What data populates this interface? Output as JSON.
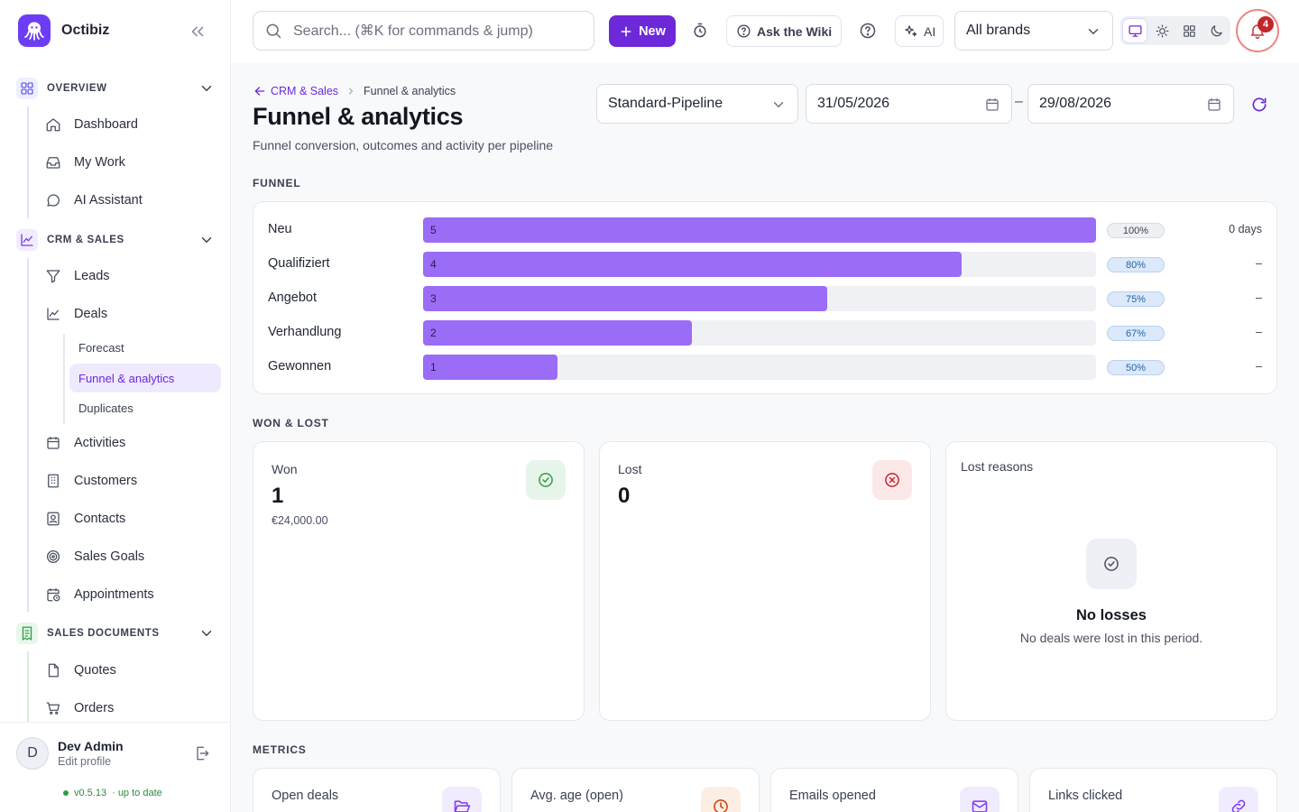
{
  "app": {
    "name": "Octibiz"
  },
  "sidebar": {
    "sections": [
      {
        "label": "OVERVIEW",
        "items": [
          "Dashboard",
          "My Work",
          "AI Assistant"
        ]
      },
      {
        "label": "CRM & SALES",
        "items": [
          "Leads",
          "Deals",
          "Activities",
          "Customers",
          "Contacts",
          "Sales Goals",
          "Appointments"
        ],
        "sub_items": [
          "Forecast",
          "Funnel & analytics",
          "Duplicates"
        ]
      },
      {
        "label": "SALES DOCUMENTS",
        "items": [
          "Quotes",
          "Orders"
        ]
      }
    ],
    "active_item": "Funnel & analytics"
  },
  "profile": {
    "initial": "D",
    "name": "Dev Admin",
    "link": "Edit profile",
    "version": "v0.5.13",
    "version_status": "· up to date"
  },
  "topbar": {
    "search_placeholder": "Search... (⌘K for commands & jump)",
    "new_label": "New",
    "wiki_label": "Ask the Wiki",
    "ai_label": "AI",
    "brand_select": "All brands",
    "notification_count": "4"
  },
  "page": {
    "breadcrumb_parent": "CRM & Sales",
    "breadcrumb_current": "Funnel & analytics",
    "title": "Funnel & analytics",
    "subtitle": "Funnel conversion, outcomes and activity per pipeline",
    "pipeline": "Standard-Pipeline",
    "date_from": "31/05/2026",
    "date_to": "29/08/2026",
    "date_separator": "–"
  },
  "funnel": {
    "heading": "FUNNEL",
    "stages": [
      {
        "name": "Neu",
        "count": 5,
        "fraction": 1.0,
        "pct": "100%",
        "days": "0 days"
      },
      {
        "name": "Qualifiziert",
        "count": 4,
        "fraction": 0.8,
        "pct": "80%",
        "days": "–"
      },
      {
        "name": "Angebot",
        "count": 3,
        "fraction": 0.6,
        "pct": "75%",
        "days": "–"
      },
      {
        "name": "Verhandlung",
        "count": 2,
        "fraction": 0.4,
        "pct": "67%",
        "days": "–"
      },
      {
        "name": "Gewonnen",
        "count": 1,
        "fraction": 0.2,
        "pct": "50%",
        "days": "–"
      }
    ]
  },
  "won_lost": {
    "heading": "WON & LOST",
    "won": {
      "label": "Won",
      "value": "1",
      "amount": "€24,000.00"
    },
    "lost": {
      "label": "Lost",
      "value": "0"
    },
    "lost_reasons": {
      "title": "Lost reasons",
      "empty_title": "No losses",
      "empty_text": "No deals were lost in this period."
    }
  },
  "metrics": {
    "heading": "METRICS",
    "cards": [
      {
        "label": "Open deals",
        "icon": "folder-open-icon",
        "color": "#7c3aed"
      },
      {
        "label": "Avg. age (open)",
        "icon": "clock-icon",
        "color": "#c2410c"
      },
      {
        "label": "Emails opened",
        "icon": "mail-icon",
        "color": "#7c3aed"
      },
      {
        "label": "Links clicked",
        "icon": "link-icon",
        "color": "#7c3aed"
      }
    ]
  },
  "colors": {
    "accent": "#6d28d9",
    "funnel_bar": "#9b6cf5",
    "won": "#2f9e44",
    "lost": "#c3262b"
  }
}
